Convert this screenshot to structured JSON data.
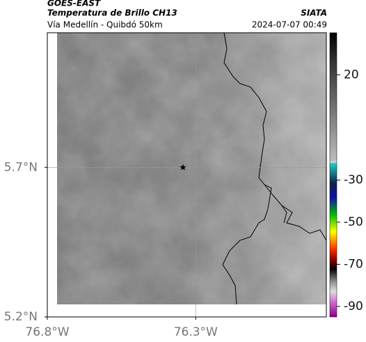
{
  "header": {
    "source": "GOES-EAST",
    "title": "Temperatura de Brillo CH13",
    "subtitle": "Vía Medellín - Quibdó 50km",
    "org": "SIATA",
    "datetime": "2024-07-07 00:49"
  },
  "map": {
    "xlim": [
      -76.8,
      -75.86
    ],
    "ylim": [
      5.2,
      6.15
    ],
    "xticks": [
      {
        "value": -76.8,
        "label": "76.8°W"
      },
      {
        "value": -76.3,
        "label": "76.3°W"
      }
    ],
    "yticks": [
      {
        "value": 5.2,
        "label": "5.2°N"
      },
      {
        "value": 5.7,
        "label": "5.7°N"
      }
    ]
  },
  "colorbar": {
    "ylim": [
      -95,
      40
    ],
    "yticks": [
      20,
      -30,
      -50,
      -70,
      -90
    ]
  }
}
